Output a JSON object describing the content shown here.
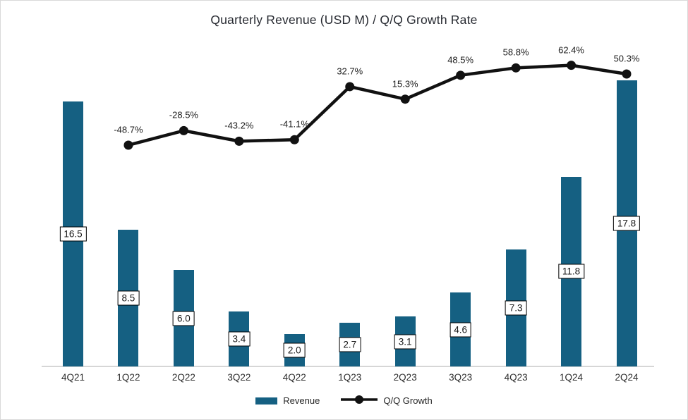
{
  "title": "Quarterly Revenue (USD M) / Q/Q Growth Rate",
  "legend": {
    "revenue_label": "Revenue",
    "growth_label": "Q/Q Growth"
  },
  "colors": {
    "bar": "#156082",
    "line": "#111111",
    "axis_line": "#d6d6d6",
    "label_box_border": "#000000",
    "text": "#262626"
  },
  "chart_data": {
    "type": "combo",
    "title": "Quarterly Revenue (USD M) / Q/Q Growth Rate",
    "categories": [
      "4Q21",
      "1Q22",
      "2Q22",
      "3Q22",
      "4Q22",
      "1Q23",
      "2Q23",
      "3Q23",
      "4Q23",
      "1Q24",
      "2Q24"
    ],
    "series": [
      {
        "name": "Revenue",
        "type": "bar",
        "values": [
          16.5,
          8.5,
          6.0,
          3.4,
          2.0,
          2.7,
          3.1,
          4.6,
          7.3,
          11.8,
          17.8
        ],
        "labels": [
          "16.5",
          "8.5",
          "6.0",
          "3.4",
          "2.0",
          "2.7",
          "3.1",
          "4.6",
          "7.3",
          "11.8",
          "17.8"
        ]
      },
      {
        "name": "Q/Q Growth",
        "type": "line",
        "values": [
          null,
          -48.7,
          -28.5,
          -43.2,
          -41.1,
          32.7,
          15.3,
          48.5,
          58.8,
          62.4,
          50.3
        ],
        "labels": [
          null,
          "-48.7%",
          "-28.5%",
          "-43.2%",
          "-41.1%",
          "32.7%",
          "15.3%",
          "48.5%",
          "58.8%",
          "62.4%",
          "50.3%"
        ]
      }
    ],
    "y1_axis": {
      "label": "Revenue (USD M)",
      "implied_range": [
        0,
        20
      ],
      "visible": false
    },
    "y2_axis": {
      "label": "Q/Q Growth Rate (%)",
      "implied_range": [
        -100,
        100
      ],
      "visible": false
    },
    "gridlines": false,
    "data_labels": true,
    "legend_position": "bottom"
  }
}
